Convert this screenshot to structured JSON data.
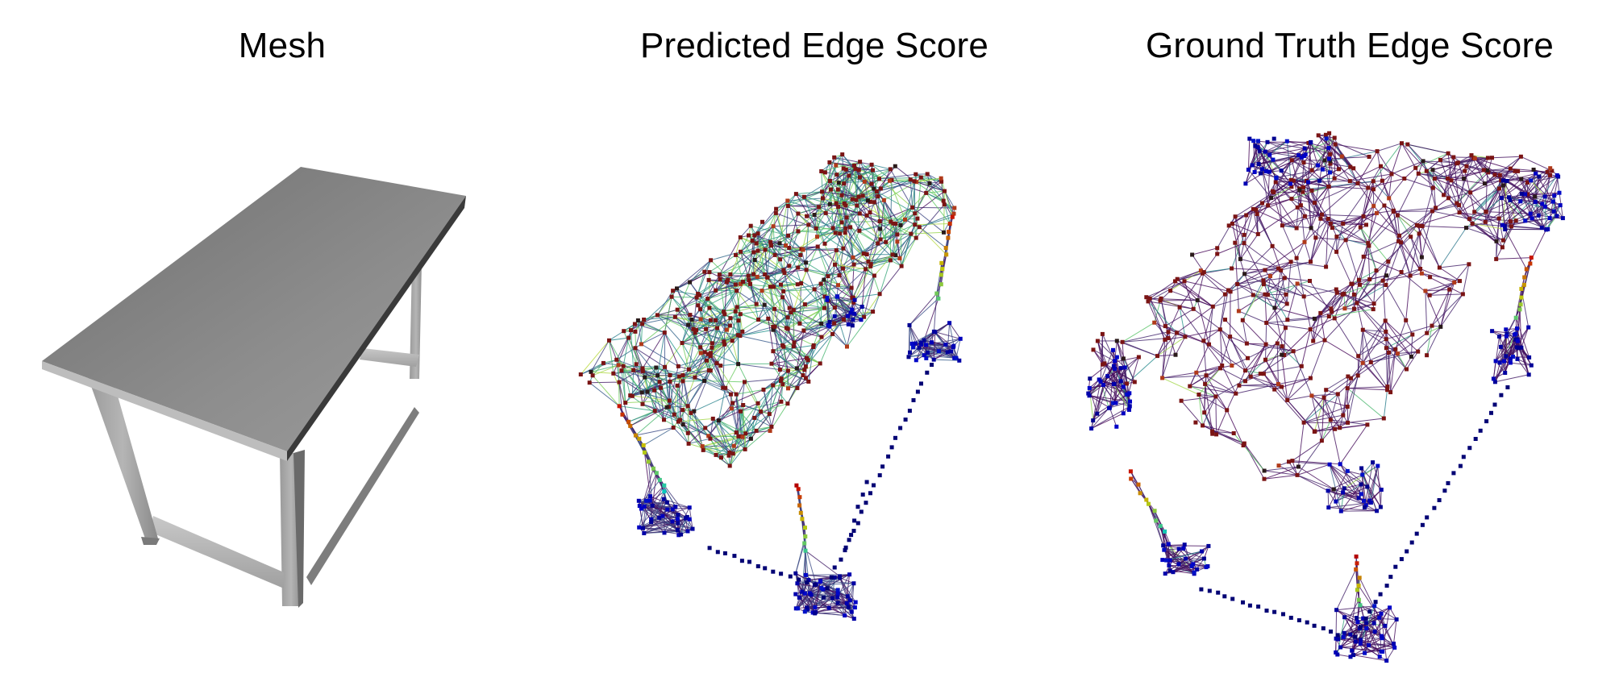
{
  "panels": [
    {
      "title": "Mesh"
    },
    {
      "title": "Predicted Edge Score"
    },
    {
      "title": "Ground Truth Edge Score"
    }
  ],
  "colors": {
    "low_score": "#2a1a5e",
    "mid_score": "#3b8fc4",
    "high_score": "#c9dc3a",
    "node_low": "#1a237e",
    "node_high": "#8b1a1a",
    "mesh_top": "#8a8a8a",
    "mesh_leg": "#a8a8a8"
  }
}
